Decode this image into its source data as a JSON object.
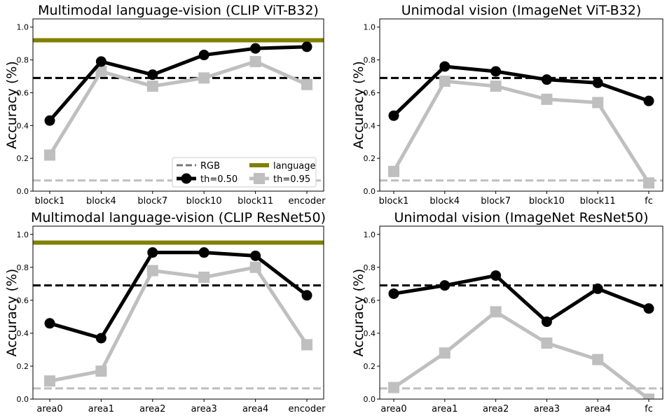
{
  "chart_data": [
    {
      "type": "line",
      "title": "Multimodal language-vision (CLIP ViT-B32)",
      "ylabel": "Accuracy (%)",
      "ylim": [
        0,
        1.05
      ],
      "yticks": [
        "0.0",
        "0.2",
        "0.4",
        "0.6",
        "0.8",
        "1.0"
      ],
      "categories": [
        "block1",
        "block4",
        "block7",
        "block10",
        "block11",
        "encoder"
      ],
      "series": [
        {
          "name": "th=0.50",
          "color": "#000000",
          "marker": "circle",
          "values": [
            0.43,
            0.79,
            0.71,
            0.83,
            0.87,
            0.88
          ]
        },
        {
          "name": "th=0.95",
          "color": "#bfbfbf",
          "marker": "square",
          "values": [
            0.22,
            0.73,
            0.64,
            0.69,
            0.79,
            0.65
          ]
        }
      ],
      "reference_lines": [
        {
          "name": "RGB",
          "value": 0.69,
          "color": "#000000",
          "style": "dashed"
        },
        {
          "name": "language",
          "value": 0.92,
          "color": "#808000",
          "style": "solid"
        },
        {
          "name": "",
          "value": 0.065,
          "color": "#bfbfbf",
          "style": "dashed"
        }
      ],
      "legend": {
        "placement": "lower-right",
        "entries": [
          {
            "label": "RGB",
            "kind": "dashed",
            "color": "#777777"
          },
          {
            "label": "language",
            "kind": "thick",
            "color": "#808000"
          },
          {
            "label": "th=0.50",
            "kind": "circle",
            "color": "#000000"
          },
          {
            "label": "th=0.95",
            "kind": "square",
            "color": "#bfbfbf"
          }
        ]
      }
    },
    {
      "type": "line",
      "title": "Unimodal vision (ImageNet ViT-B32)",
      "ylabel": "Accuracy (%)",
      "ylim": [
        0,
        1.05
      ],
      "yticks": [
        "0.0",
        "0.2",
        "0.4",
        "0.6",
        "0.8",
        "1.0"
      ],
      "categories": [
        "block1",
        "block4",
        "block7",
        "block10",
        "block11",
        "fc"
      ],
      "series": [
        {
          "name": "th=0.50",
          "color": "#000000",
          "marker": "circle",
          "values": [
            0.46,
            0.76,
            0.73,
            0.68,
            0.66,
            0.55
          ]
        },
        {
          "name": "th=0.95",
          "color": "#bfbfbf",
          "marker": "square",
          "values": [
            0.12,
            0.67,
            0.64,
            0.56,
            0.54,
            0.05
          ]
        }
      ],
      "reference_lines": [
        {
          "name": "RGB",
          "value": 0.69,
          "color": "#000000",
          "style": "dashed"
        },
        {
          "name": "",
          "value": 0.065,
          "color": "#bfbfbf",
          "style": "dashed"
        }
      ]
    },
    {
      "type": "line",
      "title": "Multimodal language-vision (CLIP ResNet50)",
      "ylabel": "Accuracy (%)",
      "ylim": [
        0,
        1.05
      ],
      "yticks": [
        "0.0",
        "0.2",
        "0.4",
        "0.6",
        "0.8",
        "1.0"
      ],
      "categories": [
        "area0",
        "area1",
        "area2",
        "area3",
        "area4",
        "encoder"
      ],
      "series": [
        {
          "name": "th=0.50",
          "color": "#000000",
          "marker": "circle",
          "values": [
            0.46,
            0.37,
            0.89,
            0.89,
            0.87,
            0.63
          ]
        },
        {
          "name": "th=0.95",
          "color": "#bfbfbf",
          "marker": "square",
          "values": [
            0.11,
            0.17,
            0.78,
            0.74,
            0.8,
            0.33
          ]
        }
      ],
      "reference_lines": [
        {
          "name": "RGB",
          "value": 0.69,
          "color": "#000000",
          "style": "dashed"
        },
        {
          "name": "language",
          "value": 0.95,
          "color": "#808000",
          "style": "solid"
        },
        {
          "name": "",
          "value": 0.065,
          "color": "#bfbfbf",
          "style": "dashed"
        }
      ]
    },
    {
      "type": "line",
      "title": "Unimodal vision (ImageNet ResNet50)",
      "ylabel": "Accuracy (%)",
      "ylim": [
        0,
        1.05
      ],
      "yticks": [
        "0.0",
        "0.2",
        "0.4",
        "0.6",
        "0.8",
        "1.0"
      ],
      "categories": [
        "area0",
        "area1",
        "area2",
        "area3",
        "area4",
        "fc"
      ],
      "series": [
        {
          "name": "th=0.50",
          "color": "#000000",
          "marker": "circle",
          "values": [
            0.64,
            0.69,
            0.75,
            0.47,
            0.67,
            0.55
          ]
        },
        {
          "name": "th=0.95",
          "color": "#bfbfbf",
          "marker": "square",
          "values": [
            0.07,
            0.28,
            0.53,
            0.34,
            0.24,
            0.0
          ]
        }
      ],
      "reference_lines": [
        {
          "name": "RGB",
          "value": 0.69,
          "color": "#000000",
          "style": "dashed"
        },
        {
          "name": "",
          "value": 0.065,
          "color": "#bfbfbf",
          "style": "dashed"
        }
      ]
    }
  ]
}
